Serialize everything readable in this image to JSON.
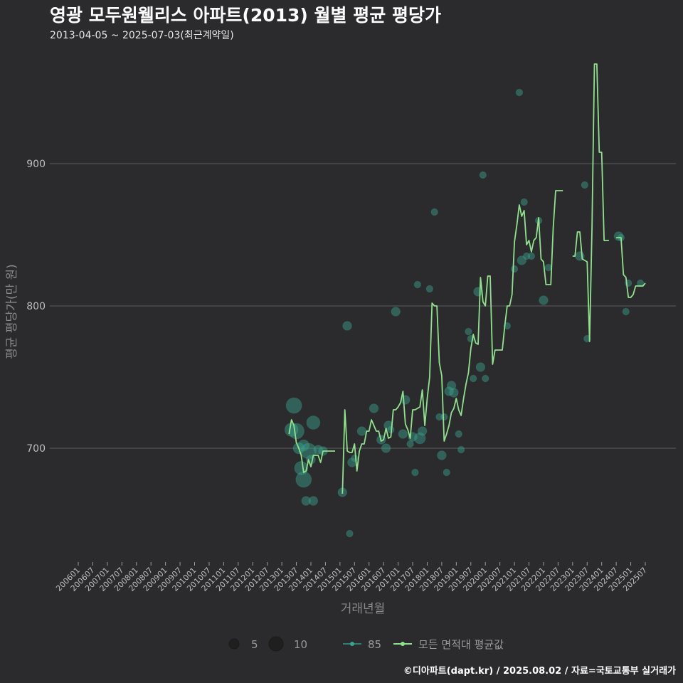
{
  "title": "영광 모두원웰리스 아파트(2013) 월별 평균 평당가",
  "subtitle": "2013-04-05 ~ 2025-07-03(최근계약일)",
  "caption": "©디아파트(dapt.kr) / 2025.08.02 / 자료=국토교통부 실거래가",
  "colors": {
    "background": "#2b2b2d",
    "grid": "#5e5e5e",
    "line": "#8fe28c",
    "points": "#3aa58f"
  },
  "chart_data": {
    "type": "line",
    "xlabel": "거래년월",
    "ylabel": "평균 평당가(만 원)",
    "ylim": [
      620,
      975
    ],
    "yticks": [
      700,
      800,
      900
    ],
    "grid": true,
    "legend_position": "bottom",
    "xlim": [
      "2006-01",
      "2025-07"
    ],
    "xticks": [
      "200601",
      "200607",
      "200701",
      "200707",
      "200801",
      "200807",
      "200901",
      "200907",
      "201001",
      "201007",
      "201101",
      "201107",
      "201201",
      "201207",
      "201301",
      "201307",
      "201401",
      "201407",
      "201501",
      "201507",
      "201601",
      "201607",
      "201701",
      "201707",
      "201801",
      "201807",
      "201901",
      "201907",
      "202001",
      "202007",
      "202101",
      "202107",
      "202201",
      "202207",
      "202301",
      "202307",
      "202401",
      "202407",
      "202501",
      "202507"
    ],
    "legend": {
      "size_values": [
        5,
        10
      ],
      "series_points": "85",
      "series_line": "모든 면적대 평균값"
    },
    "line_segments": [
      [
        [
          "2013-04",
          710
        ],
        [
          "2013-05",
          720
        ],
        [
          "2013-06",
          716
        ],
        [
          "2013-07",
          704
        ],
        [
          "2013-08",
          700
        ],
        [
          "2013-09",
          695
        ],
        [
          "2013-10",
          683
        ],
        [
          "2013-11",
          684
        ],
        [
          "2013-12",
          692
        ],
        [
          "2014-01",
          687
        ],
        [
          "2014-02",
          695
        ],
        [
          "2014-03",
          695
        ],
        [
          "2014-04",
          695
        ],
        [
          "2014-05",
          690
        ],
        [
          "2014-06",
          698
        ],
        [
          "2014-07",
          698
        ],
        [
          "2014-08",
          698
        ],
        [
          "2014-09",
          698
        ],
        [
          "2014-10",
          698
        ],
        [
          "2014-11",
          698
        ]
      ],
      [
        [
          "2015-02",
          668
        ],
        [
          "2015-03",
          727
        ],
        [
          "2015-04",
          698
        ],
        [
          "2015-05",
          697
        ],
        [
          "2015-06",
          697
        ],
        [
          "2015-07",
          703
        ],
        [
          "2015-08",
          684
        ],
        [
          "2015-09",
          698
        ],
        [
          "2015-10",
          703
        ],
        [
          "2015-11",
          703
        ],
        [
          "2015-12",
          712
        ],
        [
          "2016-01",
          712
        ],
        [
          "2016-02",
          720
        ],
        [
          "2016-03",
          716
        ],
        [
          "2016-04",
          712
        ],
        [
          "2016-05",
          712
        ],
        [
          "2016-06",
          705
        ],
        [
          "2016-07",
          706
        ],
        [
          "2016-08",
          714
        ],
        [
          "2016-09",
          707
        ],
        [
          "2016-10",
          708
        ],
        [
          "2016-11",
          727
        ],
        [
          "2016-12",
          727
        ],
        [
          "2017-01",
          729
        ],
        [
          "2017-02",
          732
        ],
        [
          "2017-03",
          740
        ],
        [
          "2017-04",
          717
        ],
        [
          "2017-05",
          713
        ],
        [
          "2017-06",
          707
        ],
        [
          "2017-07",
          727
        ],
        [
          "2017-08",
          727
        ],
        [
          "2017-09",
          728
        ],
        [
          "2017-10",
          729
        ],
        [
          "2017-11",
          741
        ],
        [
          "2017-12",
          716
        ],
        [
          "2018-01",
          735
        ],
        [
          "2018-02",
          750
        ],
        [
          "2018-03",
          802
        ],
        [
          "2018-04",
          800
        ],
        [
          "2018-05",
          800
        ],
        [
          "2018-06",
          760
        ],
        [
          "2018-07",
          751
        ],
        [
          "2018-08",
          705
        ],
        [
          "2018-09",
          710
        ],
        [
          "2018-10",
          716
        ],
        [
          "2018-11",
          725
        ],
        [
          "2018-12",
          728
        ],
        [
          "2019-01",
          735
        ],
        [
          "2019-02",
          727
        ],
        [
          "2019-03",
          723
        ],
        [
          "2019-04",
          735
        ],
        [
          "2019-05",
          745
        ],
        [
          "2019-06",
          753
        ],
        [
          "2019-07",
          770
        ],
        [
          "2019-08",
          780
        ],
        [
          "2019-09",
          774
        ],
        [
          "2019-10",
          773
        ],
        [
          "2019-11",
          820
        ],
        [
          "2019-12",
          803
        ],
        [
          "2020-01",
          800
        ],
        [
          "2020-02",
          821
        ],
        [
          "2020-03",
          821
        ],
        [
          "2020-04",
          759
        ],
        [
          "2020-05",
          769
        ],
        [
          "2020-06",
          769
        ],
        [
          "2020-07",
          769
        ],
        [
          "2020-08",
          769
        ],
        [
          "2020-09",
          786
        ],
        [
          "2020-10",
          800
        ],
        [
          "2020-11",
          800
        ],
        [
          "2020-12",
          808
        ],
        [
          "2021-01",
          845
        ],
        [
          "2021-02",
          857
        ],
        [
          "2021-03",
          871
        ],
        [
          "2021-04",
          863
        ],
        [
          "2021-05",
          867
        ],
        [
          "2021-06",
          843
        ],
        [
          "2021-07",
          846
        ],
        [
          "2021-08",
          838
        ],
        [
          "2021-09",
          846
        ],
        [
          "2021-10",
          848
        ],
        [
          "2021-11",
          862
        ],
        [
          "2021-12",
          833
        ],
        [
          "2022-01",
          831
        ],
        [
          "2022-02",
          815
        ],
        [
          "2022-03",
          815
        ],
        [
          "2022-04",
          815
        ],
        [
          "2022-05",
          855
        ],
        [
          "2022-06",
          881
        ],
        [
          "2022-07",
          881
        ],
        [
          "2022-08",
          881
        ],
        [
          "2022-09",
          881
        ]
      ],
      [
        [
          "2023-01",
          835
        ],
        [
          "2023-02",
          835
        ],
        [
          "2023-03",
          852
        ],
        [
          "2023-04",
          852
        ],
        [
          "2023-05",
          833
        ],
        [
          "2023-06",
          832
        ],
        [
          "2023-07",
          831
        ],
        [
          "2023-08",
          775
        ],
        [
          "2023-09",
          855
        ],
        [
          "2023-10",
          970
        ],
        [
          "2023-11",
          970
        ],
        [
          "2023-12",
          908
        ],
        [
          "2024-01",
          908
        ],
        [
          "2024-02",
          846
        ],
        [
          "2024-03",
          846
        ],
        [
          "2024-04",
          846
        ]
      ],
      [
        [
          "2024-07",
          848
        ],
        [
          "2024-08",
          848
        ],
        [
          "2024-09",
          848
        ],
        [
          "2024-10",
          822
        ],
        [
          "2024-11",
          820
        ],
        [
          "2024-12",
          806
        ],
        [
          "2025-01",
          806
        ],
        [
          "2025-02",
          808
        ],
        [
          "2025-03",
          814
        ],
        [
          "2025-04",
          814
        ],
        [
          "2025-05",
          814
        ],
        [
          "2025-06",
          814
        ],
        [
          "2025-07",
          816
        ]
      ]
    ],
    "points": [
      [
        "2013-05",
        713,
        5
      ],
      [
        "2013-06",
        730,
        6
      ],
      [
        "2013-07",
        712,
        6
      ],
      [
        "2013-08",
        700,
        4
      ],
      [
        "2013-09",
        686,
        5
      ],
      [
        "2013-10",
        678,
        6
      ],
      [
        "2013-10",
        702,
        4
      ],
      [
        "2013-11",
        663,
        3
      ],
      [
        "2013-12",
        698,
        6
      ],
      [
        "2014-01",
        692,
        3
      ],
      [
        "2014-02",
        718,
        5
      ],
      [
        "2014-02",
        663,
        3
      ],
      [
        "2014-04",
        699,
        3
      ],
      [
        "2014-06",
        698,
        3
      ],
      [
        "2015-02",
        669,
        3
      ],
      [
        "2015-04",
        786,
        3
      ],
      [
        "2015-05",
        640,
        2
      ],
      [
        "2015-06",
        690,
        3
      ],
      [
        "2015-07",
        693,
        2
      ],
      [
        "2015-10",
        712,
        3
      ],
      [
        "2016-03",
        728,
        3
      ],
      [
        "2016-06",
        706,
        3
      ],
      [
        "2016-08",
        700,
        3
      ],
      [
        "2016-09",
        716,
        3
      ],
      [
        "2016-10",
        713,
        2
      ],
      [
        "2016-12",
        796,
        3
      ],
      [
        "2017-03",
        710,
        3
      ],
      [
        "2017-04",
        734,
        3
      ],
      [
        "2017-06",
        703,
        2
      ],
      [
        "2017-07",
        708,
        3
      ],
      [
        "2017-08",
        683,
        2
      ],
      [
        "2017-09",
        815,
        2
      ],
      [
        "2017-10",
        707,
        4
      ],
      [
        "2017-11",
        712,
        3
      ],
      [
        "2018-02",
        812,
        2
      ],
      [
        "2018-04",
        866,
        2
      ],
      [
        "2018-06",
        722,
        2
      ],
      [
        "2018-07",
        695,
        3
      ],
      [
        "2018-08",
        722,
        2
      ],
      [
        "2018-09",
        683,
        2
      ],
      [
        "2018-10",
        740,
        3
      ],
      [
        "2018-11",
        744,
        3
      ],
      [
        "2018-12",
        739,
        3
      ],
      [
        "2019-02",
        710,
        2
      ],
      [
        "2019-03",
        699,
        2
      ],
      [
        "2019-06",
        782,
        2
      ],
      [
        "2019-07",
        777,
        2
      ],
      [
        "2019-08",
        749,
        2
      ],
      [
        "2019-10",
        810,
        3
      ],
      [
        "2019-11",
        757,
        3
      ],
      [
        "2019-12",
        892,
        2
      ],
      [
        "2020-01",
        749,
        2
      ],
      [
        "2020-10",
        786,
        2
      ],
      [
        "2021-01",
        826,
        2
      ],
      [
        "2021-03",
        950,
        2
      ],
      [
        "2021-04",
        832,
        3
      ],
      [
        "2021-05",
        873,
        2
      ],
      [
        "2021-06",
        835,
        2
      ],
      [
        "2021-08",
        835,
        2
      ],
      [
        "2021-11",
        860,
        2
      ],
      [
        "2022-01",
        804,
        3
      ],
      [
        "2022-03",
        827,
        2
      ],
      [
        "2023-04",
        835,
        3
      ],
      [
        "2023-06",
        885,
        2
      ],
      [
        "2023-07",
        777,
        2
      ],
      [
        "2024-08",
        849,
        3
      ],
      [
        "2024-09",
        848,
        2
      ],
      [
        "2024-11",
        796,
        2
      ],
      [
        "2024-12",
        816,
        2
      ],
      [
        "2025-05",
        816,
        2
      ]
    ]
  }
}
